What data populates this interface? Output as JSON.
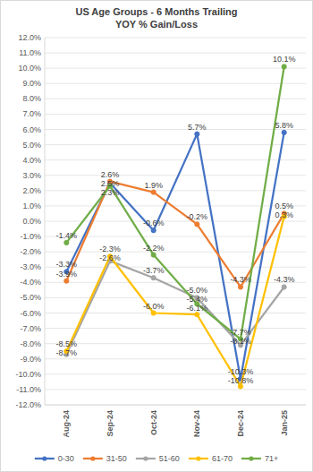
{
  "chart_data": {
    "type": "line",
    "title": "US Age Groups - 6 Months Trailing",
    "subtitle": "YOY % Gain/Loss",
    "categories": [
      "Aug-24",
      "Sep-24",
      "Oct-24",
      "Nov-24",
      "Dec-24",
      "Jan-25"
    ],
    "series": [
      {
        "name": "0-30",
        "color": "#4472c4",
        "values": [
          -3.3,
          2.5,
          -0.6,
          5.7,
          -10.3,
          5.8
        ],
        "value_labels": [
          "-3.3%",
          "2.5%",
          "-0.6%",
          "5.7%",
          "-10.3%",
          "5.8%"
        ]
      },
      {
        "name": "31-50",
        "color": "#ed7d31",
        "values": [
          -3.9,
          2.6,
          1.9,
          -0.2,
          -4.3,
          0.5
        ],
        "value_labels": [
          "-3.9%",
          "2.6%",
          "1.9%",
          "-0.2%",
          "-4.3%",
          "0.5%"
        ]
      },
      {
        "name": "51-60",
        "color": "#a5a5a5",
        "values": [
          -8.7,
          -2.6,
          -3.7,
          -5.0,
          -8.1,
          -4.3
        ],
        "value_labels": [
          "-8.7%",
          "-2.6%",
          "-3.7%",
          "-5.0%",
          "-8.1%",
          "-4.3%"
        ]
      },
      {
        "name": "61-70",
        "color": "#ffc000",
        "values": [
          -8.5,
          -2.3,
          -6.0,
          -6.1,
          -10.8,
          0.3
        ],
        "value_labels": [
          "-8.5%",
          "-2.3%",
          "-6.0%",
          "-6.1%",
          "-10.8%",
          "0.3%"
        ]
      },
      {
        "name": "71+",
        "color": "#70ad47",
        "values": [
          -1.4,
          2.3,
          -2.2,
          -5.4,
          -7.7,
          10.1
        ],
        "value_labels": [
          "-1.4%",
          "2.3%",
          "-2.2%",
          "-5.4%",
          "-7.7%",
          "10.1%"
        ]
      }
    ],
    "ylim": [
      -12,
      12
    ],
    "yticks": [
      {
        "value": -12,
        "label": "-12.0%"
      },
      {
        "value": -11,
        "label": "-11.0%"
      },
      {
        "value": -10,
        "label": "-10.0%"
      },
      {
        "value": -9,
        "label": "-9.0%"
      },
      {
        "value": -8,
        "label": "-8.0%"
      },
      {
        "value": -7,
        "label": "-7.0%"
      },
      {
        "value": -6,
        "label": "-6.0%"
      },
      {
        "value": -5,
        "label": "-5.0%"
      },
      {
        "value": -4,
        "label": "-4.0%"
      },
      {
        "value": -3,
        "label": "-3.0%"
      },
      {
        "value": -2,
        "label": "-2.0%"
      },
      {
        "value": -1,
        "label": "-1.0%"
      },
      {
        "value": 0,
        "label": "0.0%"
      },
      {
        "value": 1,
        "label": "1.0%"
      },
      {
        "value": 2,
        "label": "2.0%"
      },
      {
        "value": 3,
        "label": "3.0%"
      },
      {
        "value": 4,
        "label": "4.0%"
      },
      {
        "value": 5,
        "label": "5.0%"
      },
      {
        "value": 6,
        "label": "6.0%"
      },
      {
        "value": 7,
        "label": "7.0%"
      },
      {
        "value": 8,
        "label": "8.0%"
      },
      {
        "value": 9,
        "label": "9.0%"
      },
      {
        "value": 10,
        "label": "10.0%"
      },
      {
        "value": 11,
        "label": "11.0%"
      },
      {
        "value": 12,
        "label": "12.0%"
      }
    ],
    "grid": true,
    "legend": "bottom",
    "data_labels": true,
    "marker": "circle",
    "line_style": "solid"
  }
}
